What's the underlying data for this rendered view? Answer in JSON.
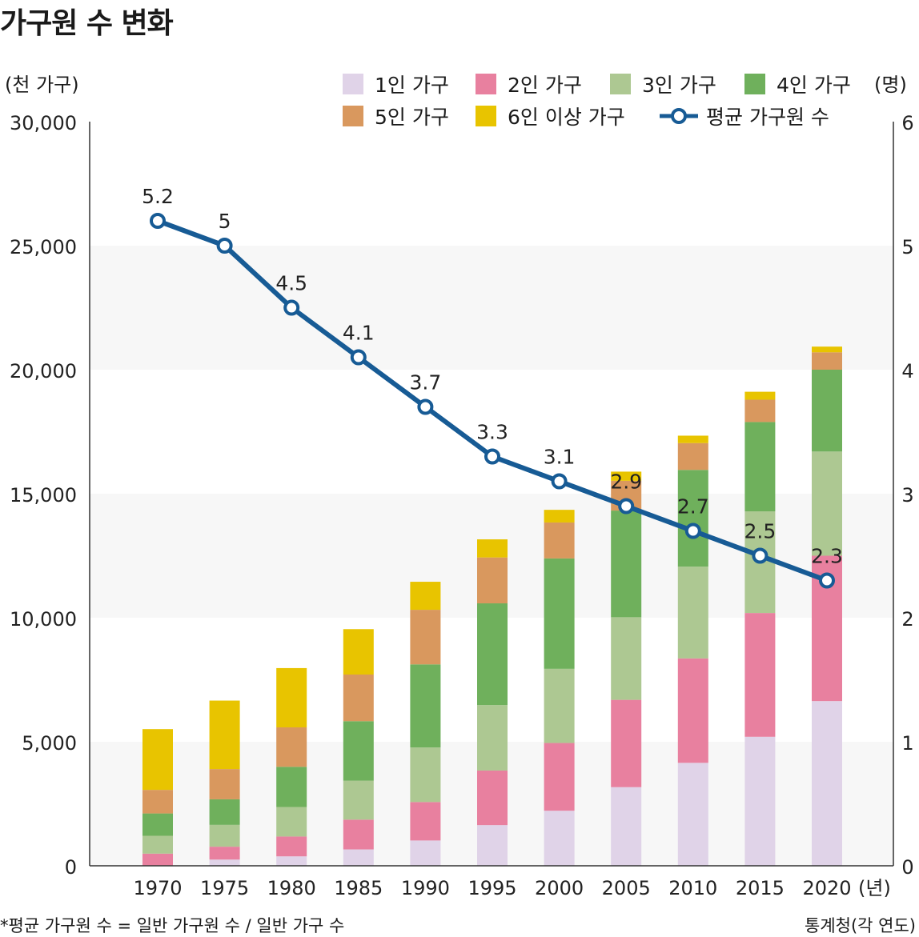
{
  "title": "가구원 수 변화",
  "unit_left": "(천 가구)",
  "unit_right": "(명)",
  "footnote": "*평균 가구원 수 = 일반 가구원 수 / 일반 가구 수",
  "source": "통계청(각 연도)",
  "chart_data": {
    "type": "bar",
    "stacked": true,
    "categories": [
      "1970",
      "1975",
      "1980",
      "1985",
      "1990",
      "1995",
      "2000",
      "2005",
      "2010",
      "2015",
      "2020"
    ],
    "x_unit": "(년)",
    "y_left": {
      "label": "(천 가구)",
      "range": [
        0,
        30000
      ],
      "ticks": [
        "0",
        "5,000",
        "10,000",
        "15,000",
        "20,000",
        "25,000",
        "30,000"
      ]
    },
    "y_right": {
      "label": "(명)",
      "range": [
        0,
        6
      ],
      "ticks": [
        "0",
        "1",
        "2",
        "3",
        "4",
        "5",
        "6"
      ]
    },
    "series": [
      {
        "name": "1인 가구",
        "color": "#e0d3e8",
        "values": [
          0,
          250,
          380,
          660,
          1020,
          1640,
          2220,
          3170,
          4150,
          5200,
          6640
        ]
      },
      {
        "name": "2인 가구",
        "color": "#e8809f",
        "values": [
          490,
          520,
          800,
          1200,
          1550,
          2200,
          2730,
          3520,
          4210,
          4990,
          5860
        ]
      },
      {
        "name": "3인 가구",
        "color": "#adc892",
        "values": [
          720,
          880,
          1190,
          1570,
          2200,
          2640,
          2990,
          3330,
          3700,
          4100,
          4200
        ]
      },
      {
        "name": "4인 가구",
        "color": "#6fb05c",
        "values": [
          900,
          1030,
          1620,
          2400,
          3350,
          4100,
          4450,
          4300,
          3900,
          3600,
          3300
        ]
      },
      {
        "name": "5인 가구",
        "color": "#d9985e",
        "values": [
          950,
          1220,
          1590,
          1880,
          2200,
          1850,
          1450,
          1200,
          1080,
          900,
          700
        ]
      },
      {
        "name": "6인 이상 가구",
        "color": "#e8c400",
        "values": [
          2450,
          2760,
          2390,
          1830,
          1130,
          730,
          510,
          370,
          300,
          320,
          230
        ]
      }
    ],
    "line_series": {
      "name": "평균 가구원 수",
      "color": "#175b95",
      "values": [
        5.2,
        5,
        4.5,
        4.1,
        3.7,
        3.3,
        3.1,
        2.9,
        2.7,
        2.5,
        2.3
      ],
      "labels": [
        "5.2",
        "5",
        "4.5",
        "4.1",
        "3.7",
        "3.3",
        "3.1",
        "2.9",
        "2.7",
        "2.5",
        "2.3"
      ]
    },
    "legend_position": "top-right",
    "background_bands": true
  }
}
